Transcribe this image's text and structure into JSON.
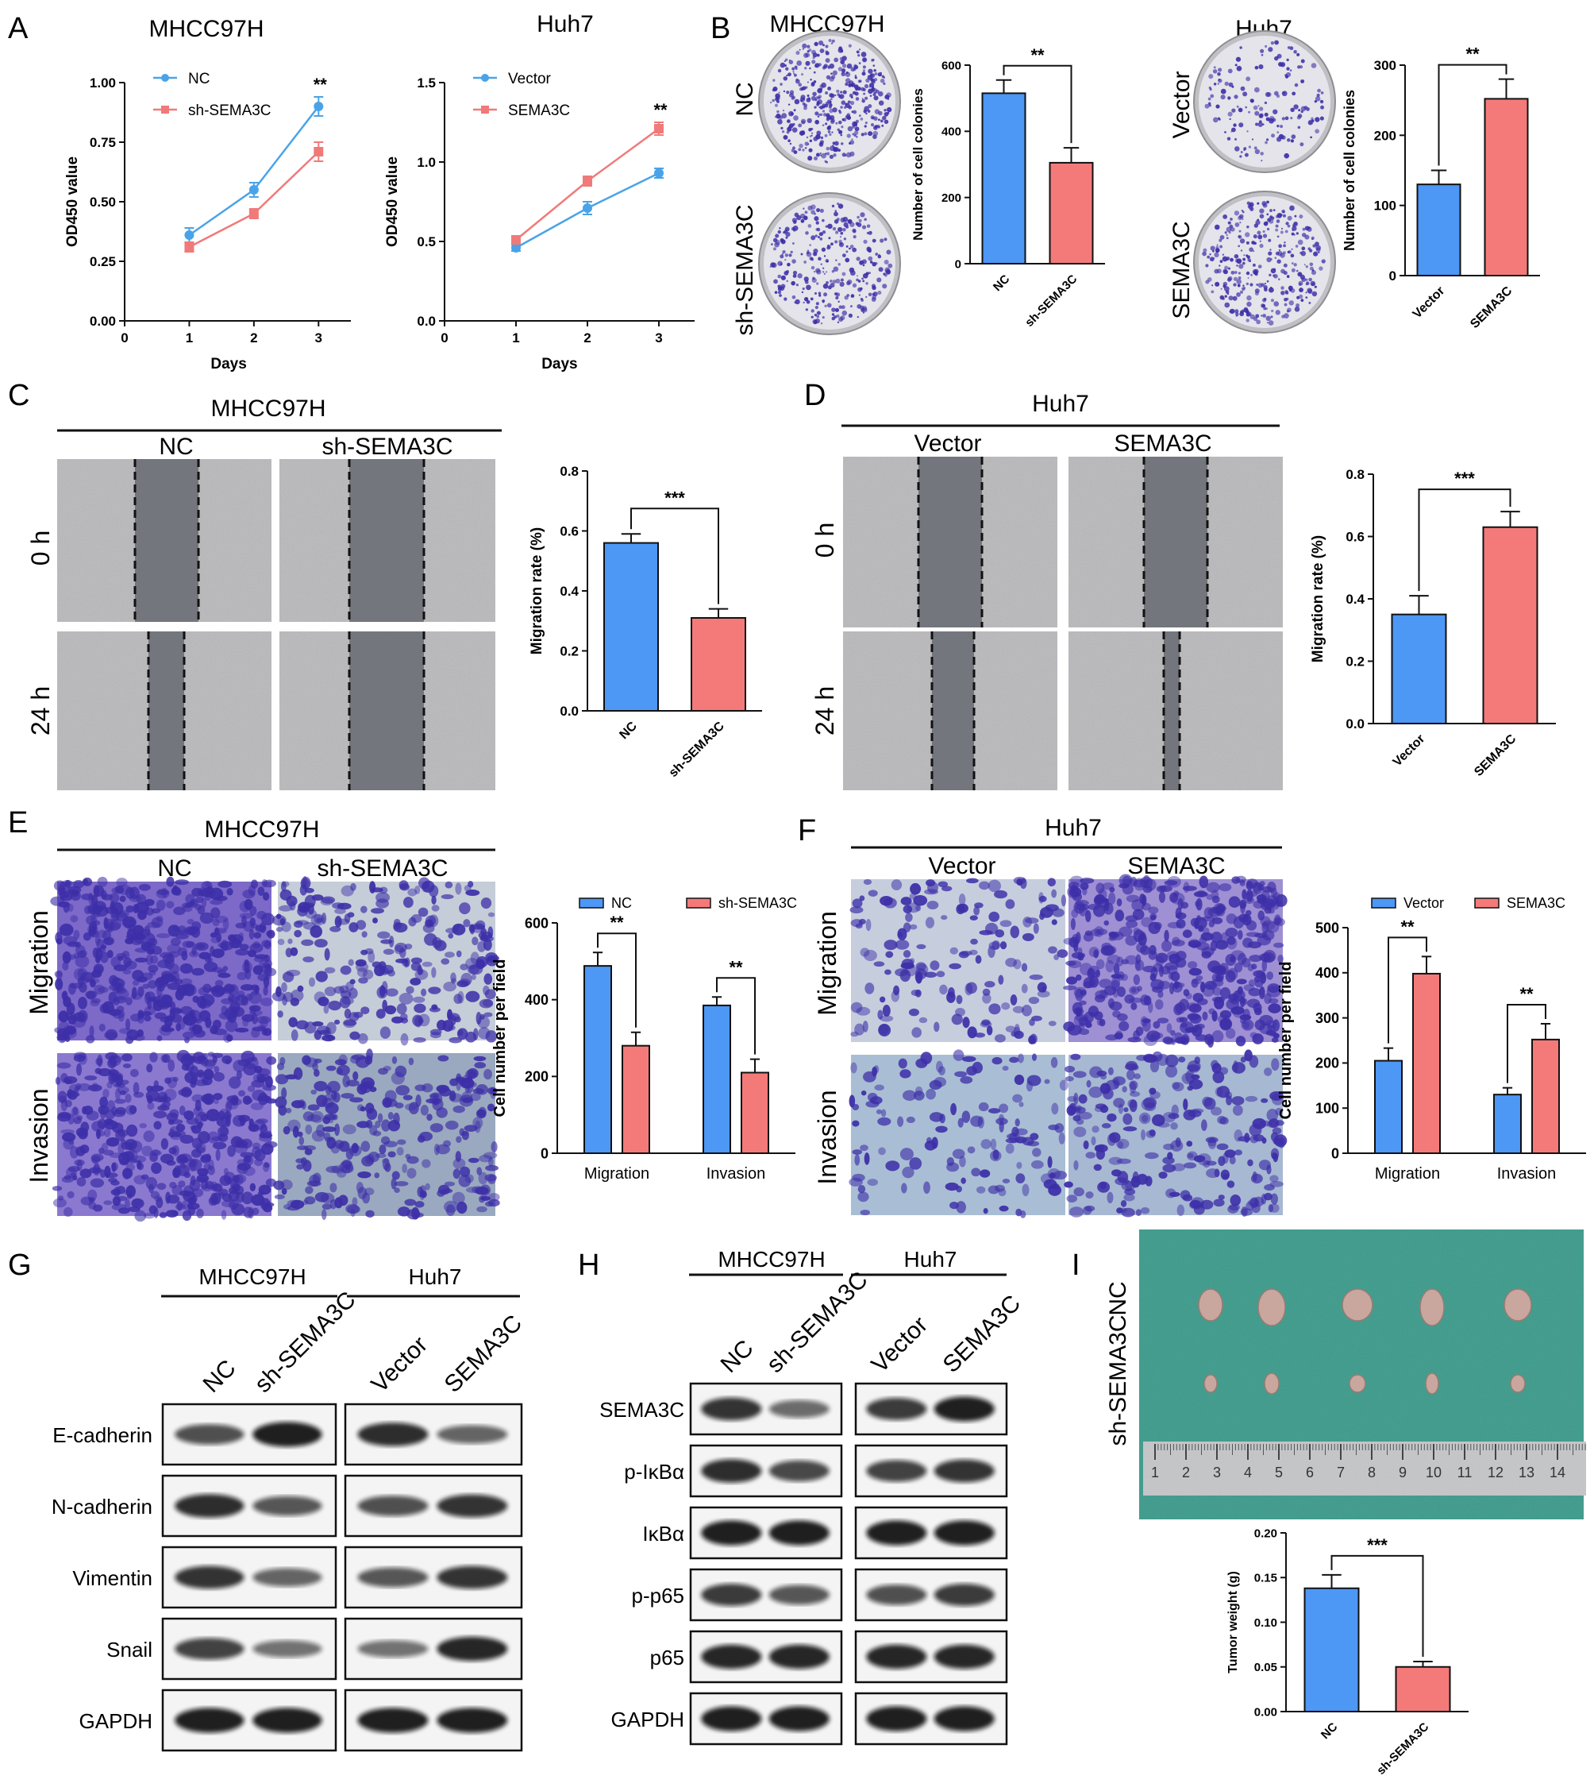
{
  "colors": {
    "blue": "#4d97f5",
    "red": "#f47a7a",
    "line_blue": "#4aa3e8",
    "line_red": "#f07a7a",
    "crystal": "#3d2fa8",
    "plate_bg": "#d8d8dc",
    "tissue_bg": "#3a9a8a",
    "tumor": "#c9a79e"
  },
  "panels": {
    "A": "A",
    "B": "B",
    "C": "C",
    "D": "D",
    "E": "E",
    "F": "F",
    "G": "G",
    "H": "H",
    "I": "I"
  },
  "panel_A": {
    "left": {
      "title": "MHCC97H",
      "xlabel": "Days",
      "ylabel": "OD450 value",
      "legend": [
        "NC",
        "sh-SEMA3C"
      ],
      "sig": "**"
    },
    "right": {
      "title": "Huh7",
      "xlabel": "Days",
      "ylabel": "OD450 value",
      "legend": [
        "Vector",
        "SEMA3C"
      ],
      "sig": "**"
    }
  },
  "panel_B": {
    "left": {
      "title": "MHCC97H",
      "row_labels": [
        "NC",
        "sh-SEMA3C"
      ],
      "ylabel": "Number of cell colonies",
      "sig": "**"
    },
    "right": {
      "title": "Huh7",
      "row_labels": [
        "Vector",
        "SEMA3C"
      ],
      "ylabel": "Number of cell colonies",
      "sig": "**"
    }
  },
  "panel_C": {
    "title": "MHCC97H",
    "col_labels": [
      "NC",
      "sh-SEMA3C"
    ],
    "row_labels": [
      "0 h",
      "24 h"
    ],
    "ylabel": "Migration rate (%)",
    "sig": "***"
  },
  "panel_D": {
    "title": "Huh7",
    "col_labels": [
      "Vector",
      "SEMA3C"
    ],
    "row_labels": [
      "0 h",
      "24 h"
    ],
    "ylabel": "Migration rate (%)",
    "sig": "***"
  },
  "panel_E": {
    "title": "MHCC97H",
    "col_labels": [
      "NC",
      "sh-SEMA3C"
    ],
    "row_labels": [
      "Migration",
      "Invasion"
    ],
    "ylabel": "Cell number per field",
    "legend": [
      "NC",
      "sh-SEMA3C"
    ],
    "sig": [
      "**",
      "**"
    ]
  },
  "panel_F": {
    "title": "Huh7",
    "col_labels": [
      "Vector",
      "SEMA3C"
    ],
    "row_labels": [
      "Migration",
      "Invasion"
    ],
    "ylabel": "Cell number per field",
    "legend": [
      "Vector",
      "SEMA3C"
    ],
    "sig": [
      "**",
      "**"
    ]
  },
  "panel_G": {
    "groups": [
      "MHCC97H",
      "Huh7"
    ],
    "lanes": [
      "NC",
      "sh-SEMA3C",
      "Vector",
      "SEMA3C"
    ],
    "proteins": [
      "E-cadherin",
      "N-cadherin",
      "Vimentin",
      "Snail",
      "GAPDH"
    ]
  },
  "panel_H": {
    "groups": [
      "MHCC97H",
      "Huh7"
    ],
    "lanes": [
      "NC",
      "sh-SEMA3C",
      "Vector",
      "SEMA3C"
    ],
    "proteins": [
      "SEMA3C",
      "p-IκBα",
      "IκBα",
      "p-p65",
      "p65",
      "GAPDH"
    ]
  },
  "panel_I": {
    "row_labels": [
      "NC",
      "sh-SEMA3C"
    ],
    "ruler_numbers": [
      "1",
      "2",
      "3",
      "4",
      "5",
      "6",
      "7",
      "8",
      "9",
      "10",
      "11",
      "12",
      "13",
      "14"
    ],
    "ylabel": "Tumor weight (g)",
    "sig": "***"
  },
  "chart_data": [
    {
      "id": "A-left",
      "type": "line",
      "title": "MHCC97H",
      "xlabel": "Days",
      "ylabel": "OD450 value",
      "x": [
        1,
        2,
        3
      ],
      "xlim": [
        0,
        3.5
      ],
      "xticks": [
        "0",
        "1",
        "2",
        "3"
      ],
      "ylim": [
        0,
        1.0
      ],
      "yticks": [
        "0.00",
        "0.25",
        "0.50",
        "0.75",
        "1.00"
      ],
      "series": [
        {
          "name": "NC",
          "values": [
            0.36,
            0.55,
            0.9
          ],
          "errors": [
            0.03,
            0.03,
            0.04
          ]
        },
        {
          "name": "sh-SEMA3C",
          "values": [
            0.31,
            0.45,
            0.71
          ],
          "errors": [
            0.02,
            0.02,
            0.04
          ]
        }
      ],
      "legend": "top-left",
      "annotation": "**"
    },
    {
      "id": "A-right",
      "type": "line",
      "title": "Huh7",
      "xlabel": "Days",
      "ylabel": "OD450 value",
      "x": [
        1,
        2,
        3
      ],
      "xlim": [
        0,
        3.5
      ],
      "xticks": [
        "0",
        "1",
        "2",
        "3"
      ],
      "ylim": [
        0,
        1.5
      ],
      "yticks": [
        "0.0",
        "0.5",
        "1.0",
        "1.5"
      ],
      "series": [
        {
          "name": "Vector",
          "values": [
            0.46,
            0.71,
            0.93
          ],
          "errors": [
            0.02,
            0.04,
            0.03
          ]
        },
        {
          "name": "SEMA3C",
          "values": [
            0.51,
            0.88,
            1.21
          ],
          "errors": [
            0.02,
            0.03,
            0.04
          ]
        }
      ],
      "legend": "top-left",
      "annotation": "**"
    },
    {
      "id": "B-left",
      "type": "bar",
      "ylabel": "Number of cell colonies",
      "categories": [
        "NC",
        "sh-SEMA3C"
      ],
      "values": [
        515,
        305
      ],
      "errors": [
        40,
        45
      ],
      "ylim": [
        0,
        600
      ],
      "yticks": [
        "0",
        "200",
        "400",
        "600"
      ],
      "annotation": "**"
    },
    {
      "id": "B-right",
      "type": "bar",
      "ylabel": "Number of cell colonies",
      "categories": [
        "Vector",
        "SEMA3C"
      ],
      "values": [
        130,
        252
      ],
      "errors": [
        20,
        28
      ],
      "ylim": [
        0,
        300
      ],
      "yticks": [
        "0",
        "100",
        "200",
        "300"
      ],
      "annotation": "**"
    },
    {
      "id": "C",
      "type": "bar",
      "ylabel": "Migration rate (%)",
      "categories": [
        "NC",
        "sh-SEMA3C"
      ],
      "values": [
        0.56,
        0.31
      ],
      "errors": [
        0.03,
        0.03
      ],
      "ylim": [
        0,
        0.8
      ],
      "yticks": [
        "0.0",
        "0.2",
        "0.4",
        "0.6",
        "0.8"
      ],
      "annotation": "***"
    },
    {
      "id": "D",
      "type": "bar",
      "ylabel": "Migration rate (%)",
      "categories": [
        "Vector",
        "SEMA3C"
      ],
      "values": [
        0.35,
        0.63
      ],
      "errors": [
        0.06,
        0.05
      ],
      "ylim": [
        0,
        0.8
      ],
      "yticks": [
        "0.0",
        "0.2",
        "0.4",
        "0.6",
        "0.8"
      ],
      "annotation": "***"
    },
    {
      "id": "E",
      "type": "bar",
      "ylabel": "Cell number per field",
      "categories": [
        "Migration",
        "Invasion"
      ],
      "series": [
        {
          "name": "NC",
          "values": [
            488,
            385
          ],
          "errors": [
            35,
            22
          ]
        },
        {
          "name": "sh-SEMA3C",
          "values": [
            280,
            210
          ],
          "errors": [
            35,
            35
          ]
        }
      ],
      "ylim": [
        0,
        600
      ],
      "yticks": [
        "0",
        "200",
        "400",
        "600"
      ],
      "legend": "top",
      "annotation": [
        "**",
        "**"
      ]
    },
    {
      "id": "F",
      "type": "bar",
      "ylabel": "Cell number per field",
      "categories": [
        "Migration",
        "Invasion"
      ],
      "series": [
        {
          "name": "Vector",
          "values": [
            205,
            130
          ],
          "errors": [
            28,
            15
          ]
        },
        {
          "name": "SEMA3C",
          "values": [
            398,
            252
          ],
          "errors": [
            38,
            35
          ]
        }
      ],
      "ylim": [
        0,
        500
      ],
      "yticks": [
        "0",
        "100",
        "200",
        "300",
        "400",
        "500"
      ],
      "legend": "top",
      "annotation": [
        "**",
        "**"
      ]
    },
    {
      "id": "I",
      "type": "bar",
      "ylabel": "Tumor weight (g)",
      "categories": [
        "NC",
        "sh-SEMA3C"
      ],
      "values": [
        0.138,
        0.05
      ],
      "errors": [
        0.015,
        0.006
      ],
      "ylim": [
        0,
        0.2
      ],
      "yticks": [
        "0.00",
        "0.05",
        "0.10",
        "0.15",
        "0.20"
      ],
      "annotation": "***"
    }
  ]
}
